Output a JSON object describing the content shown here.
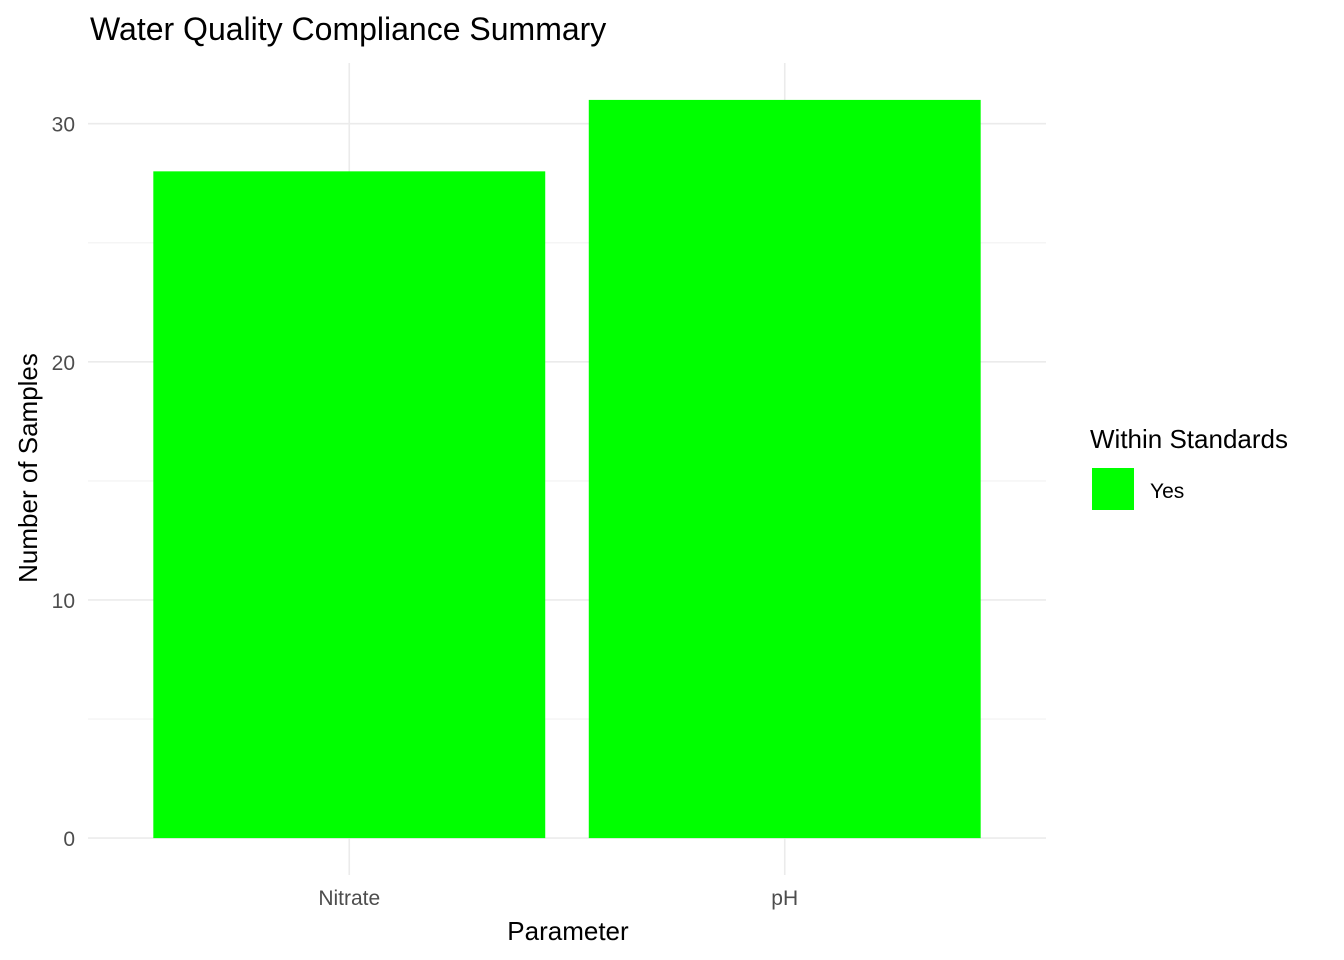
{
  "chart_data": {
    "type": "bar",
    "title": "Water Quality Compliance Summary",
    "xlabel": "Parameter",
    "ylabel": "Number of Samples",
    "categories": [
      "Nitrate",
      "pH"
    ],
    "series": [
      {
        "name": "Yes",
        "values": [
          28,
          31
        ],
        "color": "#00ff00"
      }
    ],
    "ylim": [
      -1.55,
      32.55
    ],
    "yticks": [
      0,
      10,
      20,
      30
    ],
    "yticks_minor": [
      5,
      15,
      25
    ],
    "grid": true,
    "legend": {
      "title": "Within Standards",
      "placement": "right"
    }
  }
}
